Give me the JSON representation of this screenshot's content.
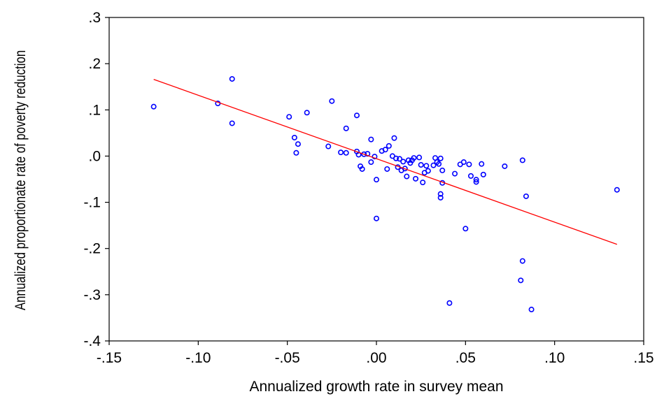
{
  "chart_data": {
    "type": "scatter",
    "title": "",
    "xlabel": "Annualized growth rate in survey mean",
    "ylabel": "Annualized proportionate rate of poverty reduction",
    "xlim": [
      -0.15,
      0.15
    ],
    "ylim": [
      -0.4,
      0.3
    ],
    "x_ticks": [
      -0.15,
      -0.1,
      -0.05,
      0.0,
      0.05,
      0.1,
      0.15
    ],
    "x_tick_labels": [
      "-.15",
      "-.10",
      "-.05",
      ".00",
      ".05",
      ".10",
      ".15"
    ],
    "y_ticks": [
      -0.4,
      -0.3,
      -0.2,
      -0.1,
      0.0,
      0.1,
      0.2,
      0.3
    ],
    "y_tick_labels": [
      "-.4",
      "-.3",
      "-.2",
      "-.1",
      ".0",
      ".1",
      ".2",
      ".3"
    ],
    "grid": false,
    "colors": {
      "points": "#0000ff",
      "fit_line": "#ff0000",
      "axes": "#000000"
    },
    "series": [
      {
        "marker": "circle",
        "points": [
          [
            -0.125,
            0.107
          ],
          [
            -0.089,
            0.114
          ],
          [
            -0.081,
            0.167
          ],
          [
            -0.081,
            0.071
          ],
          [
            -0.049,
            0.085
          ],
          [
            -0.046,
            0.04
          ],
          [
            -0.044,
            0.026
          ],
          [
            -0.045,
            0.007
          ],
          [
            -0.039,
            0.094
          ],
          [
            -0.027,
            0.021
          ],
          [
            -0.025,
            0.119
          ],
          [
            -0.02,
            0.008
          ],
          [
            -0.017,
            0.06
          ],
          [
            -0.017,
            0.007
          ],
          [
            -0.011,
            0.088
          ],
          [
            -0.011,
            0.01
          ],
          [
            -0.01,
            0.003
          ],
          [
            -0.009,
            -0.022
          ],
          [
            -0.008,
            -0.028
          ],
          [
            -0.007,
            0.004
          ],
          [
            -0.005,
            0.005
          ],
          [
            -0.003,
            -0.013
          ],
          [
            -0.003,
            0.036
          ],
          [
            -0.001,
            -0.001
          ],
          [
            0.0,
            -0.051
          ],
          [
            0.0,
            -0.135
          ],
          [
            0.003,
            0.011
          ],
          [
            0.005,
            0.014
          ],
          [
            0.006,
            -0.028
          ],
          [
            0.007,
            0.022
          ],
          [
            0.009,
            0.0
          ],
          [
            0.01,
            0.039
          ],
          [
            0.011,
            -0.005
          ],
          [
            0.012,
            -0.024
          ],
          [
            0.013,
            -0.006
          ],
          [
            0.014,
            -0.031
          ],
          [
            0.015,
            -0.012
          ],
          [
            0.016,
            -0.027
          ],
          [
            0.017,
            -0.044
          ],
          [
            0.018,
            -0.009
          ],
          [
            0.019,
            -0.015
          ],
          [
            0.02,
            -0.009
          ],
          [
            0.021,
            -0.004
          ],
          [
            0.022,
            -0.049
          ],
          [
            0.024,
            -0.003
          ],
          [
            0.025,
            -0.019
          ],
          [
            0.026,
            -0.057
          ],
          [
            0.027,
            -0.036
          ],
          [
            0.028,
            -0.021
          ],
          [
            0.029,
            -0.032
          ],
          [
            0.032,
            -0.02
          ],
          [
            0.033,
            -0.004
          ],
          [
            0.034,
            -0.013
          ],
          [
            0.035,
            -0.017
          ],
          [
            0.036,
            -0.005
          ],
          [
            0.036,
            -0.082
          ],
          [
            0.036,
            -0.09
          ],
          [
            0.037,
            -0.058
          ],
          [
            0.037,
            -0.031
          ],
          [
            0.041,
            -0.318
          ],
          [
            0.044,
            -0.038
          ],
          [
            0.047,
            -0.018
          ],
          [
            0.049,
            -0.013
          ],
          [
            0.05,
            -0.157
          ],
          [
            0.052,
            -0.018
          ],
          [
            0.053,
            -0.043
          ],
          [
            0.056,
            -0.051
          ],
          [
            0.056,
            -0.056
          ],
          [
            0.059,
            -0.017
          ],
          [
            0.06,
            -0.04
          ],
          [
            0.072,
            -0.022
          ],
          [
            0.082,
            -0.009
          ],
          [
            0.082,
            -0.227
          ],
          [
            0.081,
            -0.269
          ],
          [
            0.084,
            -0.087
          ],
          [
            0.087,
            -0.332
          ],
          [
            0.135,
            -0.073
          ]
        ]
      }
    ],
    "fit_line": {
      "x": [
        -0.125,
        0.135
      ],
      "y": [
        0.166,
        -0.191
      ]
    }
  }
}
